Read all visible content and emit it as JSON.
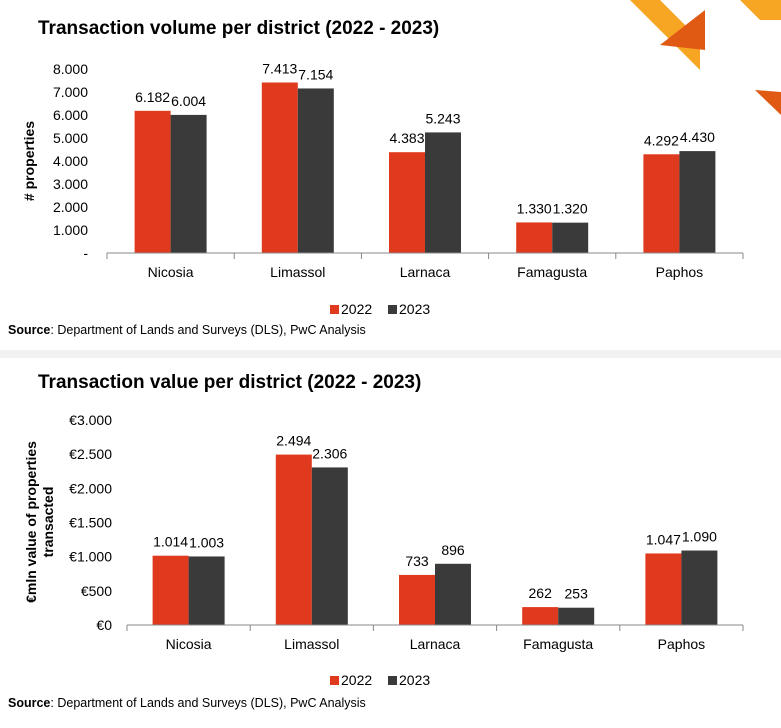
{
  "colors": {
    "c2022": "#e03a1e",
    "c2023": "#3a3a3a",
    "accent_orange": "#f6a623",
    "accent_red": "#e05a14"
  },
  "charts": [
    {
      "title": "Transaction volume per district (2022 - 2023)",
      "source_label": "Source",
      "source_text": ": Department of Lands and Surveys (DLS), PwC Analysis",
      "chart_data": {
        "type": "bar",
        "categories": [
          "Nicosia",
          "Limassol",
          "Larnaca",
          "Famagusta",
          "Paphos"
        ],
        "series": [
          {
            "name": "2022",
            "values": [
              6182,
              7413,
              4383,
              1330,
              4292
            ],
            "labels": [
              "6.182",
              "7.413",
              "4.383",
              "1.330",
              "4.292"
            ]
          },
          {
            "name": "2023",
            "values": [
              6004,
              7154,
              5243,
              1320,
              4430
            ],
            "labels": [
              "6.004",
              "7.154",
              "5.243",
              "1.320",
              "4.430"
            ]
          }
        ],
        "ylabel": "# properties",
        "ylim": [
          0,
          8000
        ],
        "yticks": [
          0,
          1000,
          2000,
          3000,
          4000,
          5000,
          6000,
          7000,
          8000
        ],
        "ytick_labels": [
          "-",
          "1.000",
          "2.000",
          "3.000",
          "4.000",
          "5.000",
          "6.000",
          "7.000",
          "8.000"
        ],
        "legend_position": "bottom-center",
        "grid": false
      }
    },
    {
      "title": "Transaction value per district (2022 - 2023)",
      "source_label": "Source",
      "source_text": ": Department of Lands and Surveys (DLS), PwC Analysis",
      "chart_data": {
        "type": "bar",
        "categories": [
          "Nicosia",
          "Limassol",
          "Larnaca",
          "Famagusta",
          "Paphos"
        ],
        "series": [
          {
            "name": "2022",
            "values": [
              1014,
              2494,
              733,
              262,
              1047
            ],
            "labels": [
              "1.014",
              "2.494",
              "733",
              "262",
              "1.047"
            ]
          },
          {
            "name": "2023",
            "values": [
              1003,
              2306,
              896,
              253,
              1090
            ],
            "labels": [
              "1.003",
              "2.306",
              "896",
              "253",
              "1.090"
            ]
          }
        ],
        "ylabel_lines": [
          "€mln value of properties",
          "transacted"
        ],
        "ylim": [
          0,
          3000
        ],
        "yticks": [
          0,
          500,
          1000,
          1500,
          2000,
          2500,
          3000
        ],
        "ytick_labels": [
          "€0",
          "€500",
          "€1.000",
          "€1.500",
          "€2.000",
          "€2.500",
          "€3.000"
        ],
        "legend_position": "bottom-center",
        "grid": false
      }
    }
  ]
}
